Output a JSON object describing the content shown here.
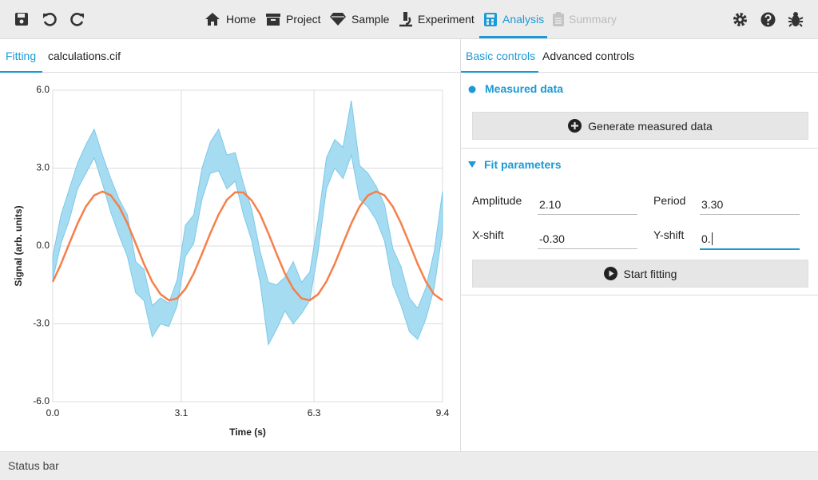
{
  "toolbar": {
    "tabs": [
      "Home",
      "Project",
      "Sample",
      "Experiment",
      "Analysis",
      "Summary"
    ]
  },
  "left_panel": {
    "tabs": [
      "Fitting",
      "calculations.cif"
    ]
  },
  "right_panel": {
    "tabs": [
      "Basic controls",
      "Advanced controls"
    ],
    "measured_section": {
      "title": "Measured data",
      "button": "Generate measured data"
    },
    "fit_section": {
      "title": "Fit parameters",
      "fields": [
        {
          "label": "Amplitude",
          "value": "2.10"
        },
        {
          "label": "Period",
          "value": "3.30"
        },
        {
          "label": "X-shift",
          "value": "-0.30"
        },
        {
          "label": "Y-shift",
          "value": "0."
        }
      ],
      "button": "Start fitting"
    }
  },
  "status_bar": "Status bar",
  "chart_data": {
    "type": "line",
    "x_label": "Time (s)",
    "y_label": "Signal (arb. units)",
    "x": [
      0,
      0.2,
      0.4,
      0.6,
      0.8,
      1,
      1.2,
      1.4,
      1.6,
      1.8,
      2,
      2.2,
      2.4,
      2.6,
      2.8,
      3,
      3.2,
      3.4,
      3.6,
      3.8,
      4,
      4.2,
      4.4,
      4.6,
      4.8,
      5,
      5.2,
      5.4,
      5.6,
      5.8,
      6,
      6.2,
      6.4,
      6.6,
      6.8,
      7,
      7.2,
      7.4,
      7.6,
      7.8,
      8,
      8.2,
      8.4,
      8.6,
      8.8,
      9,
      9.2,
      9.4
    ],
    "band": {
      "color": "#a6dcf1",
      "upper": [
        -0.4,
        1.2,
        2.2,
        3.2,
        3.9,
        4.5,
        3.5,
        2.6,
        1.8,
        1.2,
        -0.6,
        -0.9,
        -2.3,
        -2.0,
        -2.2,
        -1.3,
        0.8,
        1.2,
        3.0,
        4.0,
        4.5,
        3.5,
        3.6,
        2.4,
        1.4,
        -0.2,
        -1.4,
        -1.5,
        -1.2,
        -0.6,
        -1.4,
        -1.0,
        1.0,
        3.4,
        4.1,
        3.8,
        5.6,
        3.1,
        2.8,
        2.3,
        1.6,
        -0.1,
        -0.8,
        -2.0,
        -2.4,
        -1.6,
        -0.2,
        2.1
      ],
      "lower": [
        -1.3,
        0.1,
        1.0,
        2.2,
        2.8,
        3.4,
        2.4,
        1.3,
        0.4,
        -0.4,
        -1.8,
        -2.1,
        -3.5,
        -3.0,
        -3.1,
        -2.3,
        -0.4,
        0.1,
        1.8,
        2.8,
        2.9,
        2.2,
        2.5,
        1.2,
        0.2,
        -1.4,
        -3.8,
        -3.2,
        -2.5,
        -3.0,
        -2.6,
        -2.1,
        -0.2,
        2.2,
        3.0,
        2.6,
        3.5,
        1.8,
        1.5,
        1.0,
        0.2,
        -1.5,
        -2.3,
        -3.3,
        -3.6,
        -2.8,
        -1.6,
        0.6
      ]
    },
    "series": [
      {
        "color": "#f5804a",
        "values": [
          -1.38,
          -0.69,
          0.1,
          0.87,
          1.52,
          1.95,
          2.1,
          1.95,
          1.52,
          0.88,
          0.1,
          -0.69,
          -1.38,
          -1.86,
          -2.09,
          -2.02,
          -1.65,
          -1.06,
          -0.3,
          0.49,
          1.21,
          1.78,
          2.07,
          2.06,
          1.75,
          1.23,
          0.49,
          -0.31,
          -1.06,
          -1.65,
          -2.02,
          -2.09,
          -1.86,
          -1.37,
          -0.69,
          0.1,
          0.87,
          1.52,
          1.95,
          2.1,
          1.95,
          1.52,
          0.87,
          0.1,
          -0.69,
          -1.38,
          -1.87,
          -2.09
        ]
      }
    ],
    "xlim": [
      0,
      9.4
    ],
    "xticks": [
      {
        "value": 0,
        "label": "0.0"
      },
      3.1,
      6.3,
      9.4
    ],
    "ylim": [
      -6,
      6
    ],
    "yticks": [
      {
        "value": -6,
        "label": "-6.0"
      },
      {
        "value": -3,
        "label": "-3.0"
      },
      {
        "value": 0,
        "label": "0.0"
      },
      {
        "value": 3,
        "label": "3.0"
      },
      {
        "value": 6,
        "label": "6.0"
      }
    ],
    "grid": true
  }
}
